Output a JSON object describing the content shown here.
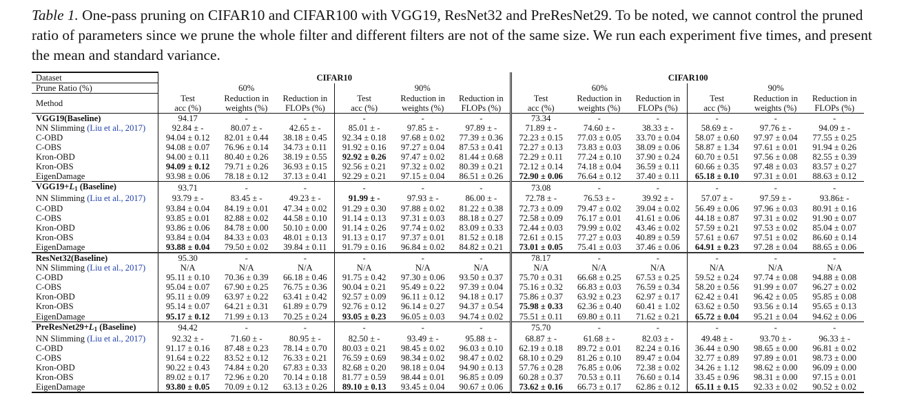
{
  "caption": {
    "label": "Table 1.",
    "text": " One-pass pruning on CIFAR10 and CIFAR100 with VGG19, ResNet32 and PreResNet29. To be noted, we cannot control the pruned ratio of parameters since we prune the whole filter and different filters are not of the same size. We run each experiment five times, and present the mean and standard variance."
  },
  "header": {
    "dataset_label": "Dataset",
    "datasets": [
      "CIFAR10",
      "CIFAR100"
    ],
    "prune_ratio_label": "Prune Ratio (%)",
    "ratios": [
      "60%",
      "90%",
      "60%",
      "90%"
    ],
    "method_label": "Method",
    "metric_line1": [
      "Test",
      "Reduction in",
      "Reduction in"
    ],
    "metric_line2": [
      "acc (%)",
      "weights (%)",
      "FLOPs (%)"
    ]
  },
  "groups": [
    {
      "baseline": {
        "name": "VGG19(Baseline)",
        "cells": [
          "94.17",
          "-",
          "-",
          "-",
          "-",
          "-",
          "73.34",
          "-",
          "-",
          "-",
          "-",
          "-"
        ]
      },
      "rows": [
        {
          "method": "NN Slimming",
          "cite": "(Liu et al., 2017)",
          "cells": [
            "92.84 ± -",
            "80.07 ± -",
            "42.65 ± -",
            "85.01 ± -",
            "97.85 ± -",
            "97.89 ± -",
            "71.89 ± -",
            "74.60 ± -",
            "38.33 ± -",
            "58.69 ± -",
            "97.76 ± -",
            "94.09 ± -"
          ],
          "bold": []
        },
        {
          "method": "C-OBD",
          "cells": [
            "94.04 ± 0.12",
            "82.01 ± 0.44",
            "38.18 ± 0.45",
            "92.34 ± 0.18",
            "97.68 ± 0.02",
            "77.39 ± 0.36",
            "72.23 ± 0.15",
            "77.03 ± 0.05",
            "33.70 ± 0.04",
            "58.07 ± 0.60",
            "97.97 ± 0.04",
            "77.55 ± 0.25"
          ],
          "bold": []
        },
        {
          "method": "C-OBS",
          "cells": [
            "94.08 ± 0.07",
            "76.96 ± 0.14",
            "34.73 ± 0.11",
            "91.92 ± 0.16",
            "97.27 ± 0.04",
            "87.53 ± 0.41",
            "72.27 ± 0.13",
            "73.83 ± 0.03",
            "38.09 ± 0.06",
            "58.87 ± 1.34",
            "97.61 ± 0.01",
            "91.94 ± 0.26"
          ],
          "bold": []
        },
        {
          "method": "Kron-OBD",
          "cells": [
            "94.00 ± 0.11",
            "80.40 ± 0.26",
            "38.19 ± 0.55",
            "92.92 ± 0.26",
            "97.47 ± 0.02",
            "81.44 ± 0.68",
            "72.29 ± 0.11",
            "77.24 ± 0.10",
            "37.90 ± 0.24",
            "60.70 ± 0.51",
            "97.56 ± 0.08",
            "82.55 ± 0.39"
          ],
          "bold": [
            3
          ]
        },
        {
          "method": "Kron-OBS",
          "cells": [
            "94.09 ± 0.12",
            "79.71 ± 0.26",
            "36.93 ± 0.15",
            "92.56 ± 0.21",
            "97.32 ± 0.02",
            "80.39 ± 0.21",
            "72.12 ± 0.14",
            "74.18 ± 0.04",
            "36.59 ± 0.11",
            "60.66 ± 0.35",
            "97.48 ± 0.03",
            "83.57 ± 0.27"
          ],
          "bold": [
            0
          ]
        },
        {
          "method": "EigenDamage",
          "cells": [
            "93.98 ± 0.06",
            "78.18 ± 0.12",
            "37.13 ± 0.41",
            "92.29 ± 0.21",
            "97.15 ± 0.04",
            "86.51 ± 0.26",
            "72.90 ± 0.06",
            "76.64 ± 0.12",
            "37.40 ± 0.11",
            "65.18 ± 0.10",
            "97.31 ± 0.01",
            "88.63 ± 0.12"
          ],
          "bold": [
            6,
            9
          ]
        }
      ]
    },
    {
      "baseline": {
        "name": "VGG19+",
        "sub": "L",
        "subidx": "1",
        "suffix": " (Baseline)",
        "cells": [
          "93.71",
          "-",
          "-",
          "-",
          "-",
          "-",
          "73.08",
          "-",
          "-",
          "-",
          "-",
          "-"
        ]
      },
      "rows": [
        {
          "method": "NN Slimming",
          "cite": "(Liu et al., 2017)",
          "cells": [
            "93.79 ± -",
            "83.45 ± -",
            "49.23 ± -",
            "91.99 ± -",
            "97.93 ± -",
            "86.00 ± -",
            "72.78 ± -",
            "76.53 ± -",
            "39.92 ± -",
            "57.07 ± -",
            "97.59 ± -",
            "93.86± -"
          ],
          "bold": [
            3
          ]
        },
        {
          "method": "C-OBD",
          "cells": [
            "93.84 ± 0.04",
            "84.19 ± 0.01",
            "47.34 ± 0.02",
            "91.29 ± 0.30",
            "97.88 ± 0.02",
            "81.22 ± 0.38",
            "72.73 ± 0.09",
            "79.47 ± 0.02",
            "39.04 ± 0.02",
            "56.49 ± 0.06",
            "97.96 ± 0.03",
            "80.91 ± 0.16"
          ],
          "bold": []
        },
        {
          "method": "C-OBS",
          "cells": [
            "93.85 ± 0.01",
            "82.88 ± 0.02",
            "44.58 ± 0.10",
            "91.14 ± 0.13",
            "97.31 ± 0.03",
            "88.18 ± 0.27",
            "72.58 ± 0.09",
            "76.17 ± 0.01",
            "41.61 ± 0.06",
            "44.18 ± 0.87",
            "97.31 ± 0.02",
            "91.90 ± 0.07"
          ],
          "bold": []
        },
        {
          "method": "Kron-OBD",
          "cells": [
            "93.86 ± 0.06",
            "84.78 ± 0.00",
            "50.10 ± 0.00",
            "91.14 ± 0.26",
            "97.74 ± 0.02",
            "83.09 ± 0.33",
            "72.44 ± 0.03",
            "79.99 ± 0.02",
            "43.46 ± 0.02",
            "57.59 ± 0.21",
            "97.53 ± 0.02",
            "85.04 ± 0.07"
          ],
          "bold": []
        },
        {
          "method": "Kron-OBS",
          "cells": [
            "93.84 ± 0.04",
            "84.33 ± 0.03",
            "48.01 ± 0.13",
            "91.13 ± 0.17",
            "97.37 ± 0.01",
            "81.52 ± 0.18",
            "72.61 ± 0.15",
            "77.27 ± 0.03",
            "40.89 ± 0.59",
            "57.61 ± 0.67",
            "97.51 ± 0.02",
            "86.60 ± 0.14"
          ],
          "bold": []
        },
        {
          "method": "EigenDamage",
          "cells": [
            "93.88 ± 0.04",
            "79.50 ± 0.02",
            "39.84 ± 0.11",
            "91.79 ± 0.16",
            "96.84 ± 0.02",
            "84.82 ± 0.21",
            "73.01 ± 0.05",
            "75.41 ± 0.03",
            "37.46 ± 0.06",
            "64.91 ± 0.23",
            "97.28 ± 0.04",
            "88.65 ± 0.06"
          ],
          "bold": [
            0,
            6,
            9
          ]
        }
      ]
    },
    {
      "baseline": {
        "name": "ResNet32(Baseline)",
        "cells": [
          "95.30",
          "-",
          "-",
          "-",
          "-",
          "-",
          "78.17",
          "-",
          "-",
          "-",
          "-",
          "-"
        ]
      },
      "rows": [
        {
          "method": "NN Slimming ",
          "cite": "(Liu et al., 2017)",
          "cells": [
            "N/A",
            "N/A",
            "N/A",
            "N/A",
            "N/A",
            "N/A",
            "N/A",
            "N/A",
            "N/A",
            "N/A",
            "N/A",
            "N/A"
          ],
          "bold": []
        },
        {
          "method": "C-OBD",
          "cells": [
            "95.11 ± 0.10",
            "70.36 ± 0.39",
            "66.18 ± 0.46",
            "91.75 ± 0.42",
            "97.30 ± 0.06",
            "93.50 ± 0.37",
            "75.70 ± 0.31",
            "66.68 ± 0.25",
            "67.53 ± 0.25",
            "59.52 ± 0.24",
            "97.74 ± 0.08",
            "94.88 ± 0.08"
          ],
          "bold": []
        },
        {
          "method": "C-OBS",
          "cells": [
            "95.04 ± 0.07",
            "67.90 ± 0.25",
            "76.75 ± 0.36",
            "90.04 ± 0.21",
            "95.49 ± 0.22",
            "97.39 ± 0.04",
            "75.16 ± 0.32",
            "66.83 ± 0.03",
            "76.59 ± 0.34",
            "58.20 ± 0.56",
            "91.99 ± 0.07",
            "96.27 ± 0.02"
          ],
          "bold": []
        },
        {
          "method": "Kron-OBD",
          "cells": [
            "95.11 ± 0.09",
            "63.97 ± 0.22",
            "63.41 ± 0.42",
            "92.57 ± 0.09",
            "96.11 ± 0.12",
            "94.18 ± 0.17",
            "75.86 ± 0.37",
            "63.92 ± 0.23",
            "62.97 ± 0.17",
            "62.42 ± 0.41",
            "96.42 ± 0.05",
            "95.85 ± 0.08"
          ],
          "bold": []
        },
        {
          "method": "Kron-OBS",
          "cells": [
            "95.14 ± 0.07",
            "64.21 ± 0.31",
            "61.89 ± 0.79",
            "92.76 ± 0.12",
            "96.14 ± 0.27",
            "94.37 ± 0.54",
            "75.98 ± 0.33",
            "62.36 ± 0.40",
            "60.41 ± 1.02",
            "63.62 ± 0.50",
            "93.56 ± 0.14",
            "95.65 ± 0.13"
          ],
          "bold": [
            6
          ]
        },
        {
          "method": "EigenDamage",
          "cells": [
            "95.17 ± 0.12",
            "71.99 ± 0.13",
            "70.25 ± 0.24",
            "93.05 ± 0.23",
            "96.05 ± 0.03",
            "94.74 ± 0.02",
            "75.51 ± 0.11",
            "69.80 ± 0.11",
            "71.62 ± 0.21",
            "65.72 ± 0.04",
            "95.21 ± 0.04",
            "94.62 ± 0.06"
          ],
          "bold": [
            0,
            3,
            9
          ]
        }
      ]
    },
    {
      "baseline": {
        "name": "PreResNet29+",
        "sub": "L",
        "subidx": "1",
        "suffix": " (Baseline)",
        "cells": [
          "94.42",
          "-",
          "-",
          "-",
          "-",
          "-",
          "75.70",
          "-",
          "-",
          "-",
          "-",
          "-"
        ]
      },
      "rows": [
        {
          "method": "NN Slimming",
          "cite": "(Liu et al., 2017)",
          "cells": [
            "92.32 ± -",
            "71.60 ± -",
            "80.95 ± -",
            "82.50 ± -",
            "93.49 ± -",
            "95.88 ± -",
            "68.87 ± -",
            "61.68 ± -",
            "82.03 ± -",
            "49.48 ± -",
            "93.70 ± -",
            "96.33 ± -"
          ],
          "bold": []
        },
        {
          "method": "C-OBD",
          "cells": [
            "91.17 ± 0.16",
            "87.48 ± 0.23",
            "78.14 ± 0.70",
            "80.03 ± 0.21",
            "98.45 ± 0.02",
            "96.03 ± 0.10",
            "62.19 ± 0.18",
            "89.72 ± 0.01",
            "82.24 ± 0.16",
            "36.44 ± 0.90",
            "98.65 ± 0.00",
            "96.81 ± 0.02"
          ],
          "bold": []
        },
        {
          "method": "C-OBS",
          "cells": [
            "91.64 ± 0.22",
            "83.52 ± 0.12",
            "76.33 ± 0.21",
            "76.59 ± 0.69",
            "98.34 ± 0.02",
            "98.47 ± 0.02",
            "68.10 ± 0.29",
            "81.26 ± 0.10",
            "89.47 ± 0.04",
            "32.77 ± 0.89",
            "97.89 ± 0.01",
            "98.73 ± 0.00"
          ],
          "bold": []
        },
        {
          "method": "Kron-OBD",
          "cells": [
            "90.22 ± 0.43",
            "74.84 ± 0.20",
            "67.83 ± 0.33",
            "82.68 ± 0.20",
            "98.18 ± 0.04",
            "94.90 ± 0.13",
            "57.76 ± 0.28",
            "76.85 ± 0.06",
            "72.38 ± 0.02",
            "34.26 ± 1.12",
            "98.62 ± 0.00",
            "96.09 ± 0.00"
          ],
          "bold": []
        },
        {
          "method": "Kron-OBS",
          "cells": [
            "89.02 ± 0.17",
            "72.96 ± 0.20",
            "70.14 ± 0.18",
            "81.77 ± 0.59",
            "98.44 ± 0.01",
            "96.85 ± 0.09",
            "60.28 ± 0.37",
            "70.53 ± 0.11",
            "76.60 ± 0.14",
            "33.45 ± 0.96",
            "98.31 ± 0.00",
            "97.15 ± 0.01"
          ],
          "bold": []
        },
        {
          "method": "EigenDamage",
          "cells": [
            "93.80 ± 0.05",
            "70.09 ± 0.12",
            "63.13 ± 0.26",
            "89.10 ± 0.13",
            "93.45 ± 0.04",
            "90.67 ± 0.06",
            "73.62 ± 0.16",
            "66.73 ± 0.17",
            "62.86 ± 0.12",
            "65.11 ± 0.15",
            "92.33 ± 0.02",
            "90.52 ± 0.02"
          ],
          "bold": [
            0,
            3,
            6,
            9
          ]
        }
      ]
    }
  ]
}
